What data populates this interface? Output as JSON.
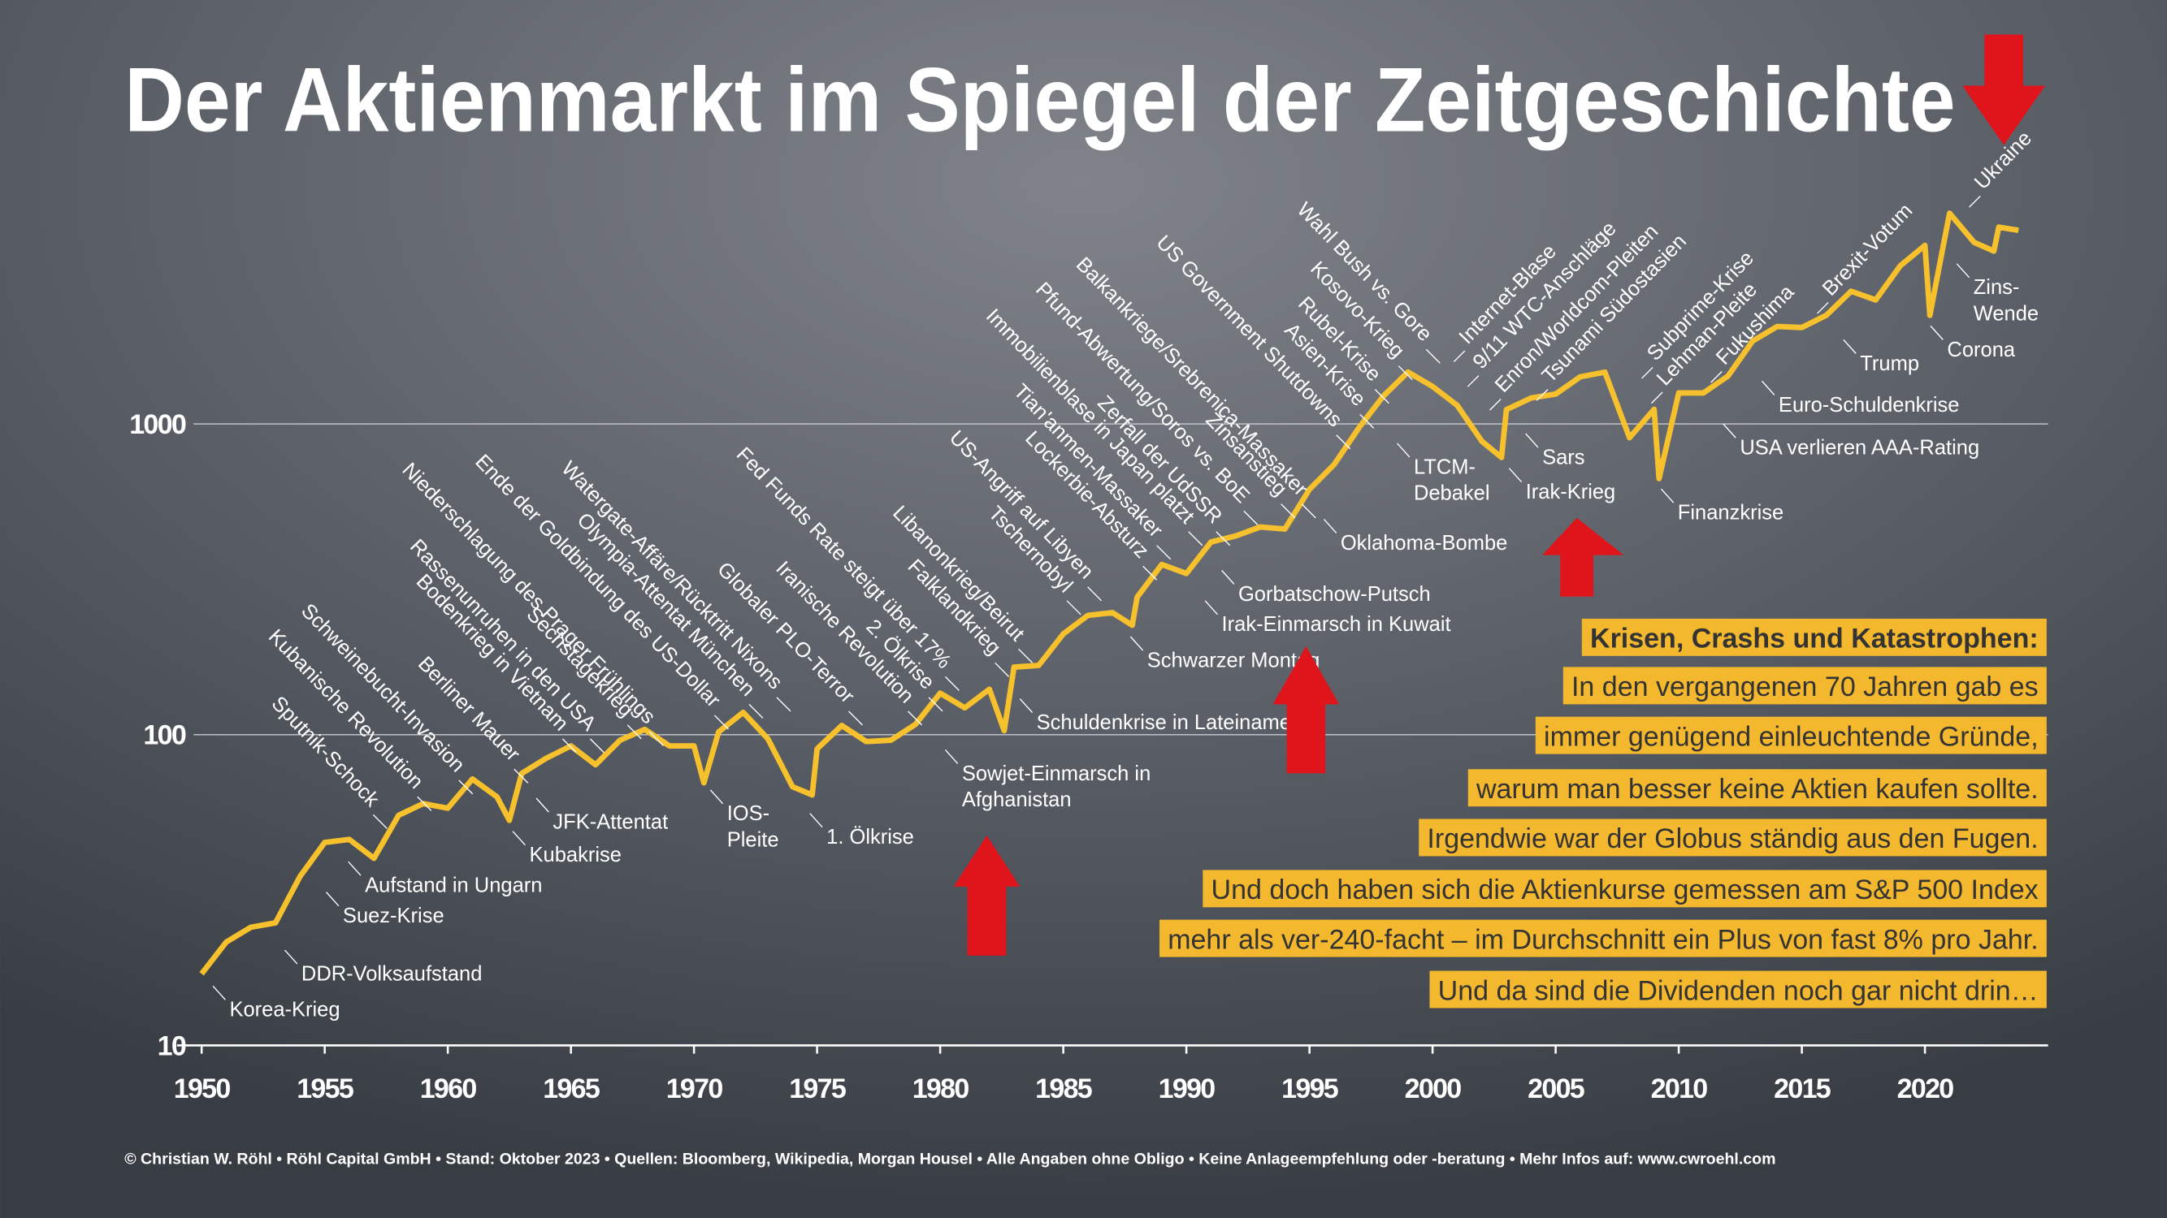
{
  "chart_data": {
    "type": "line",
    "title": "Der Aktienmarkt im Spiegel der Zeitgeschichte",
    "yscale": "log",
    "ylim": [
      10,
      10000
    ],
    "yticks": [
      10,
      100,
      1000
    ],
    "xlim": [
      1949,
      2025
    ],
    "xticks": [
      1950,
      1955,
      1960,
      1965,
      1970,
      1975,
      1980,
      1985,
      1990,
      1995,
      2000,
      2005,
      2010,
      2015,
      2020
    ],
    "grid": true,
    "color": "#f6c12c",
    "x": [
      1950,
      1951,
      1952,
      1953,
      1954,
      1955,
      1956,
      1957,
      1958,
      1959,
      1960,
      1961,
      1962,
      1962.5,
      1963,
      1964,
      1965,
      1966,
      1967,
      1968,
      1969,
      1970,
      1970.4,
      1971,
      1972,
      1973,
      1974,
      1974.8,
      1975,
      1976,
      1977,
      1978,
      1979,
      1980,
      1981,
      1982,
      1982.6,
      1983,
      1984,
      1985,
      1986,
      1987,
      1987.8,
      1988,
      1989,
      1990,
      1991,
      1992,
      1993,
      1994,
      1995,
      1996,
      1997,
      1998,
      1999,
      2000,
      2001,
      2002,
      2002.8,
      2003,
      2004,
      2005,
      2006,
      2007,
      2008,
      2009,
      2009.2,
      2010,
      2011,
      2012,
      2013,
      2014,
      2015,
      2016,
      2017,
      2018,
      2019,
      2020,
      2020.2,
      2021,
      2022,
      2022.8,
      2023,
      2023.8
    ],
    "values": [
      17,
      21.5,
      24,
      24.8,
      35,
      45,
      46,
      40,
      55,
      60,
      58,
      72,
      63,
      53,
      75,
      84,
      92,
      80,
      96,
      104,
      92,
      92,
      70,
      102,
      118,
      97,
      68,
      64,
      90,
      107,
      95,
      96,
      108,
      136,
      122,
      140,
      103,
      165,
      167,
      211,
      242,
      247,
      225,
      277,
      353,
      330,
      417,
      436,
      466,
      459,
      616,
      740,
      970,
      1229,
      1469,
      1320,
      1148,
      880,
      780,
      1112,
      1212,
      1248,
      1418,
      1468,
      903,
      1115,
      667,
      1258,
      1258,
      1426,
      1848,
      2059,
      2044,
      2239,
      2674,
      2507,
      3231,
      3756,
      2237,
      4766,
      3840,
      3600,
      4300,
      4200
    ],
    "annotations": [
      "Sputnik-Schock",
      "Kubanische Revolution",
      "Schweinebucht-Invasion",
      "Berliner Mauer",
      "Bodenkrieg in Vietnam",
      "Rassenunruhen in den USA",
      "Sechstagekrieg",
      "Niederschlagung des Prager Frühlings",
      "Ende der Goldbindung des US-Dollar",
      "Olympia-Attentat München",
      "Watergate-Affäre/Rücktritt Nixons",
      "Globaler PLO-Terror",
      "Iranische Revolution",
      "Fed Funds Rate steigt über 17%",
      "2. Ölkrise",
      "Falklandkrieg",
      "Libanonkrieg/Beirut",
      "Tschernobyl",
      "US-Angriff auf Libyen",
      "Lockerbie-Absturz",
      "Tian'anmen-Massaker",
      "Immobilienblase in Japan platzt",
      "Zerfall der UdSSR",
      "Pfund-Abwertung/Soros vs. BoE",
      "Zinsanstieg",
      "Balkankriege/Srebrenica-Massaker",
      "US Government Shutdowns",
      "Asien-Krise",
      "Rubel-Krise",
      "Kosovo-Krieg",
      "Wahl Bush vs. Gore",
      "Internet-Blase",
      "9/11 WTC-Anschläge",
      "Enron/Worldcom-Pleiten",
      "Tsunami Südostasien",
      "Subprime-Krise",
      "Lehman-Pleite",
      "Fukushima",
      "Brexit-Votum",
      "Ukraine",
      "Korea-Krieg",
      "DDR-Volksaufstand",
      "Suez-Krise",
      "Aufstand in Ungarn",
      "Kubakrise",
      "JFK-Attentat",
      [
        "IOS-",
        "Pleite"
      ],
      "1. Ölkrise",
      [
        "Sowjet-Einmarsch in",
        "Afghanistan"
      ],
      "Schuldenkrise in Lateinamerika",
      "Schwarzer Montag",
      "Irak-Einmarsch in Kuwait",
      "Gorbatschow-Putsch",
      "Oklahoma-Bombe",
      [
        "LTCM-",
        "Debakel"
      ],
      "Irak-Krieg",
      "Sars",
      "Finanzkrise",
      "USA verlieren AAA-Rating",
      "Euro-Schuldenkrise",
      "Trump",
      "Corona",
      [
        "Zins-",
        "Wende"
      ]
    ],
    "text_box": {
      "heading": "Krisen, Crashs und Katastrophen:",
      "lines": [
        "In den vergangenen 70 Jahren gab es",
        "immer genügend einleuchtende Gründe,",
        "warum man besser keine Aktien kaufen sollte.",
        "Irgendwie war der Globus ständig aus den Fugen.",
        "Und doch haben sich die Aktienkurse gemessen am S&P 500 Index",
        "mehr als ver-240-facht – im Durchschnitt ein Plus von fast 8% pro Jahr.",
        "Und da sind die Dividenden noch gar nicht drin…"
      ]
    },
    "footer": "© Christian W. Röhl • Röhl Capital GmbH • Stand: Oktober 2023 • Quellen: Bloomberg, Wikipedia, Morgan Housel • Alle Angaben ohne Obligo • Keine Anlageempfehlung oder -beratung • Mehr Infos auf: www.cwroehl.com"
  }
}
